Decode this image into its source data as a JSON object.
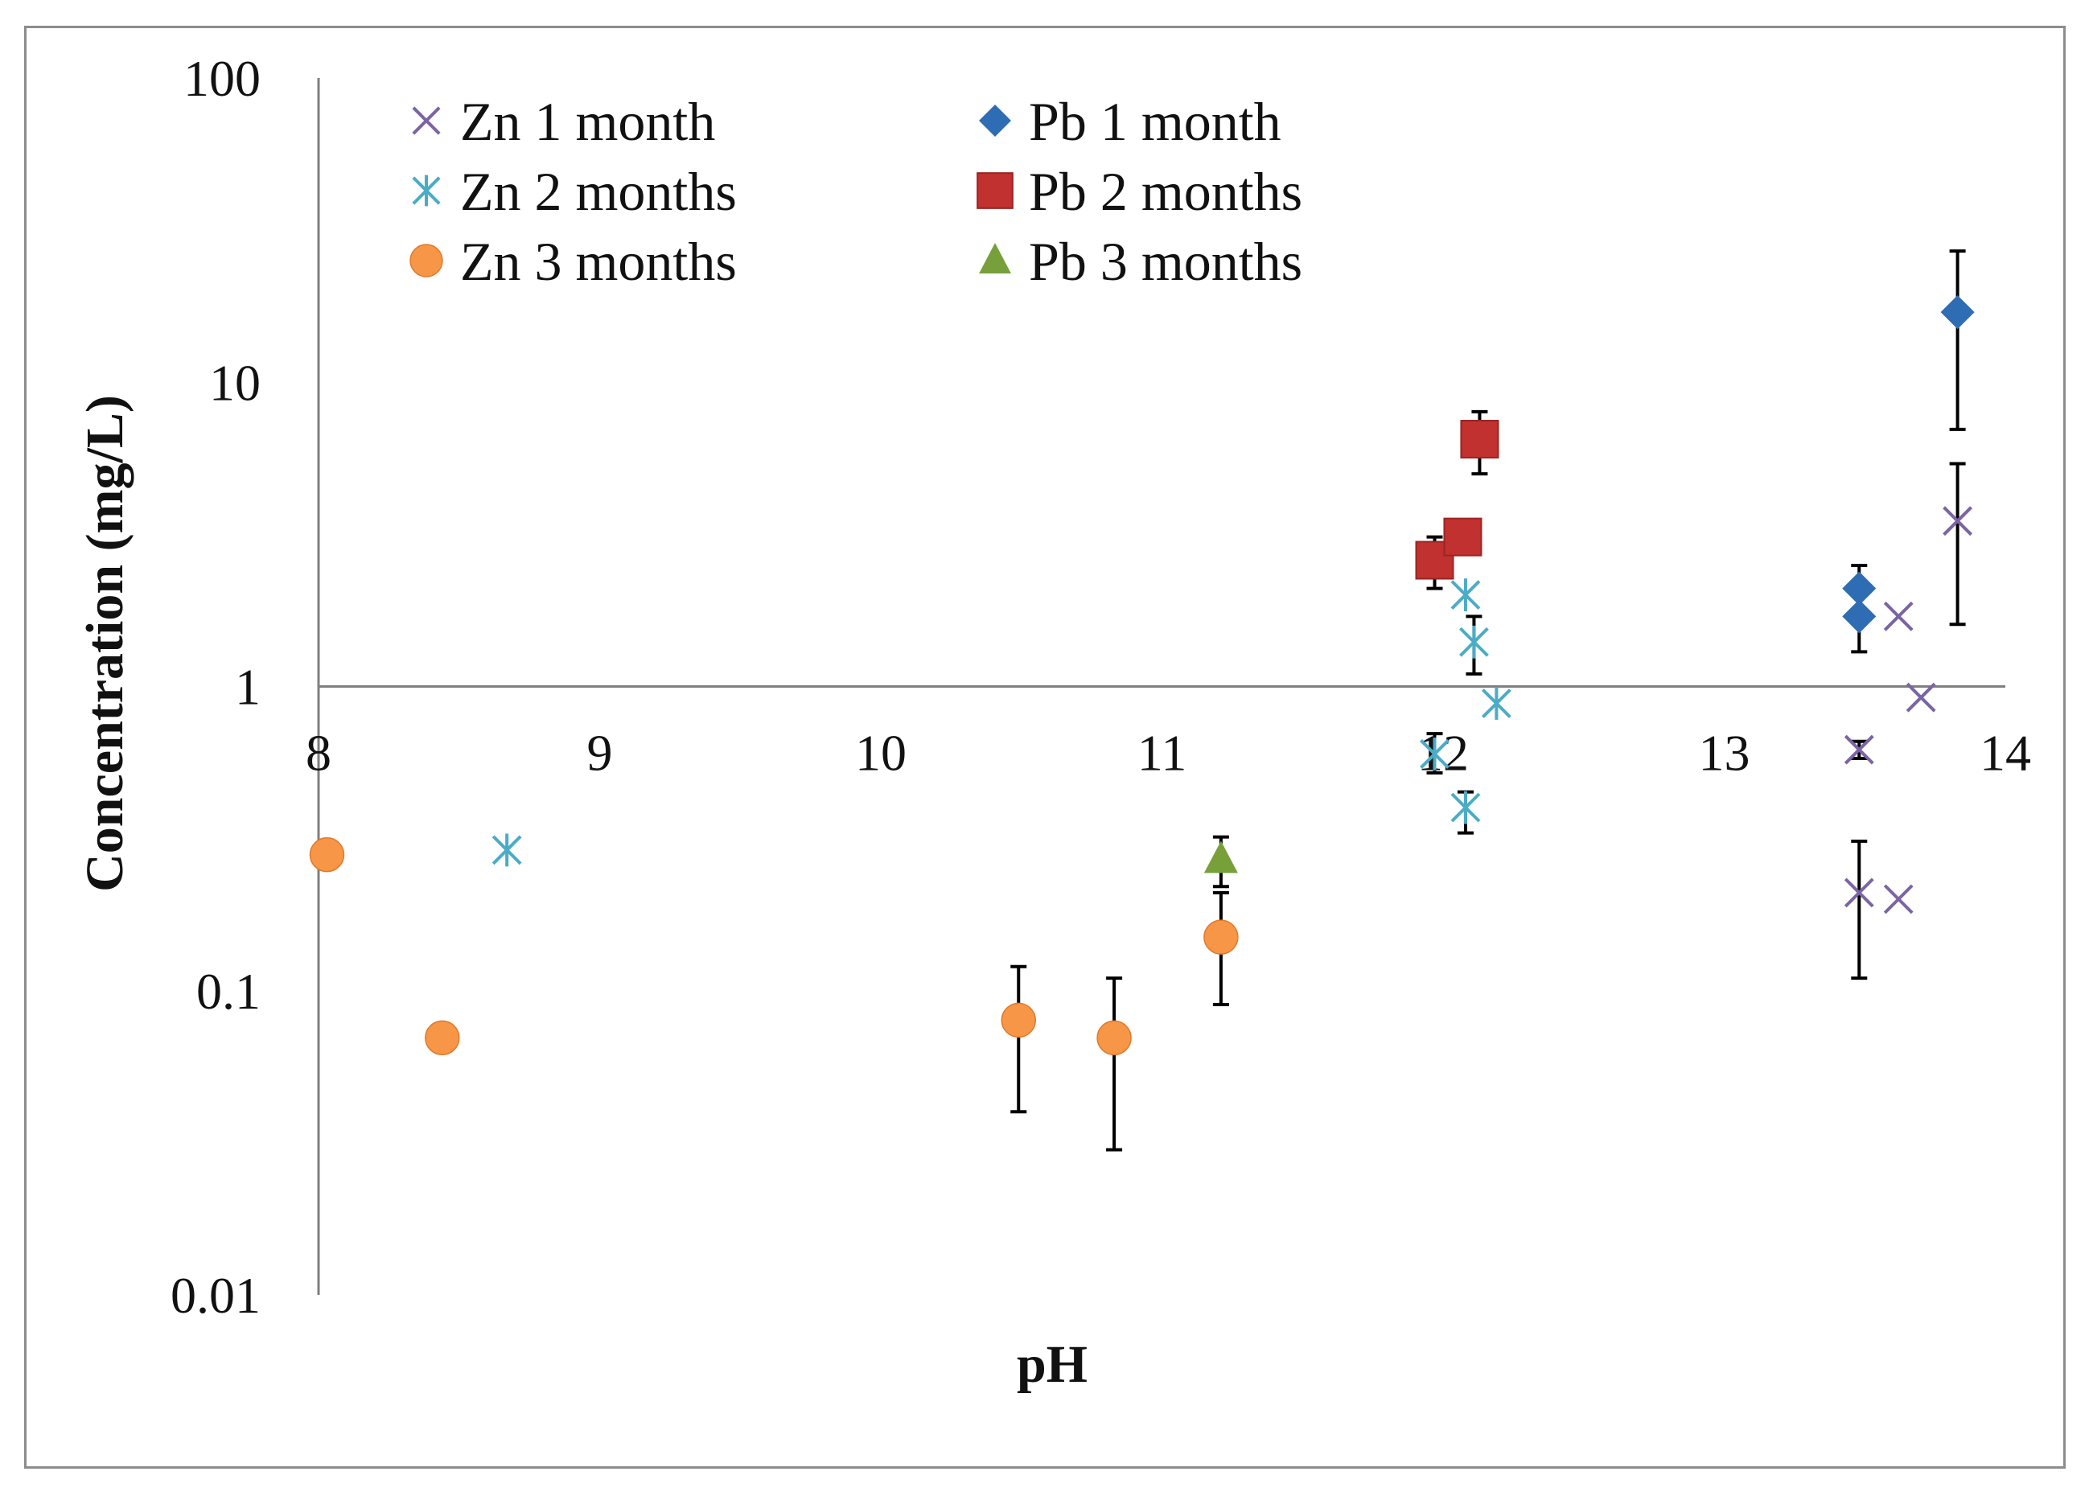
{
  "chart_data": {
    "type": "scatter",
    "title": "",
    "xlabel": "pH",
    "ylabel": "Concentration (mg/L)",
    "xlim": [
      8,
      14
    ],
    "ylim": [
      0.01,
      100
    ],
    "yscale": "log",
    "x_ticks": [
      "8",
      "9",
      "10",
      "11",
      "12",
      "13",
      "14"
    ],
    "y_ticks": [
      "0.01",
      "0.1",
      "1",
      "10",
      "100"
    ],
    "x_axis_crosses_y_at": 1,
    "grid": false,
    "legend_position": "top-left",
    "series": [
      {
        "name": "Zn 1 month",
        "marker": "x",
        "color": "#7B64A3",
        "points": [
          {
            "x": 13.48,
            "y": 0.62,
            "yerr_low": 0.58,
            "yerr_high": 0.66
          },
          {
            "x": 13.48,
            "y": 0.21,
            "yerr_low": 0.11,
            "yerr_high": 0.31
          },
          {
            "x": 13.62,
            "y": 1.7
          },
          {
            "x": 13.62,
            "y": 0.2
          },
          {
            "x": 13.7,
            "y": 0.92
          },
          {
            "x": 13.83,
            "y": 3.5,
            "yerr_low": 1.6,
            "yerr_high": 5.4
          }
        ]
      },
      {
        "name": "Zn 2 months",
        "marker": "asterisk",
        "color": "#4BACC6",
        "points": [
          {
            "x": 8.67,
            "y": 0.29
          },
          {
            "x": 11.97,
            "y": 0.6,
            "yerr_low": 0.52,
            "yerr_high": 0.7
          },
          {
            "x": 12.08,
            "y": 2.0
          },
          {
            "x": 12.08,
            "y": 0.4,
            "yerr_low": 0.33,
            "yerr_high": 0.45
          },
          {
            "x": 12.11,
            "y": 1.4,
            "yerr_low": 1.1,
            "yerr_high": 1.7
          },
          {
            "x": 12.19,
            "y": 0.88
          }
        ]
      },
      {
        "name": "Zn 3 months",
        "marker": "circle",
        "color": "#F79646",
        "points": [
          {
            "x": 8.03,
            "y": 0.28
          },
          {
            "x": 8.44,
            "y": 0.07
          },
          {
            "x": 10.49,
            "y": 0.08,
            "yerr_low": 0.04,
            "yerr_high": 0.12
          },
          {
            "x": 10.83,
            "y": 0.07,
            "yerr_low": 0.03,
            "yerr_high": 0.11
          },
          {
            "x": 11.21,
            "y": 0.15,
            "yerr_low": 0.09,
            "yerr_high": 0.21
          }
        ]
      },
      {
        "name": "Pb 1 month",
        "marker": "diamond",
        "color": "#2E6DB4",
        "points": [
          {
            "x": 13.48,
            "y": 2.1
          },
          {
            "x": 13.48,
            "y": 1.7,
            "yerr_low": 1.3,
            "yerr_high": 2.5
          },
          {
            "x": 13.83,
            "y": 17,
            "yerr_low": 7,
            "yerr_high": 27
          }
        ]
      },
      {
        "name": "Pb 2 months",
        "marker": "square",
        "color": "#C0312F",
        "points": [
          {
            "x": 11.97,
            "y": 2.6,
            "yerr_low": 2.1,
            "yerr_high": 3.1
          },
          {
            "x": 12.07,
            "y": 3.1
          },
          {
            "x": 12.13,
            "y": 6.5,
            "yerr_low": 5.0,
            "yerr_high": 8.0
          }
        ]
      },
      {
        "name": "Pb 3 months",
        "marker": "triangle",
        "color": "#77A03A",
        "points": [
          {
            "x": 11.21,
            "y": 0.27,
            "yerr_low": 0.22,
            "yerr_high": 0.32
          }
        ]
      }
    ]
  }
}
